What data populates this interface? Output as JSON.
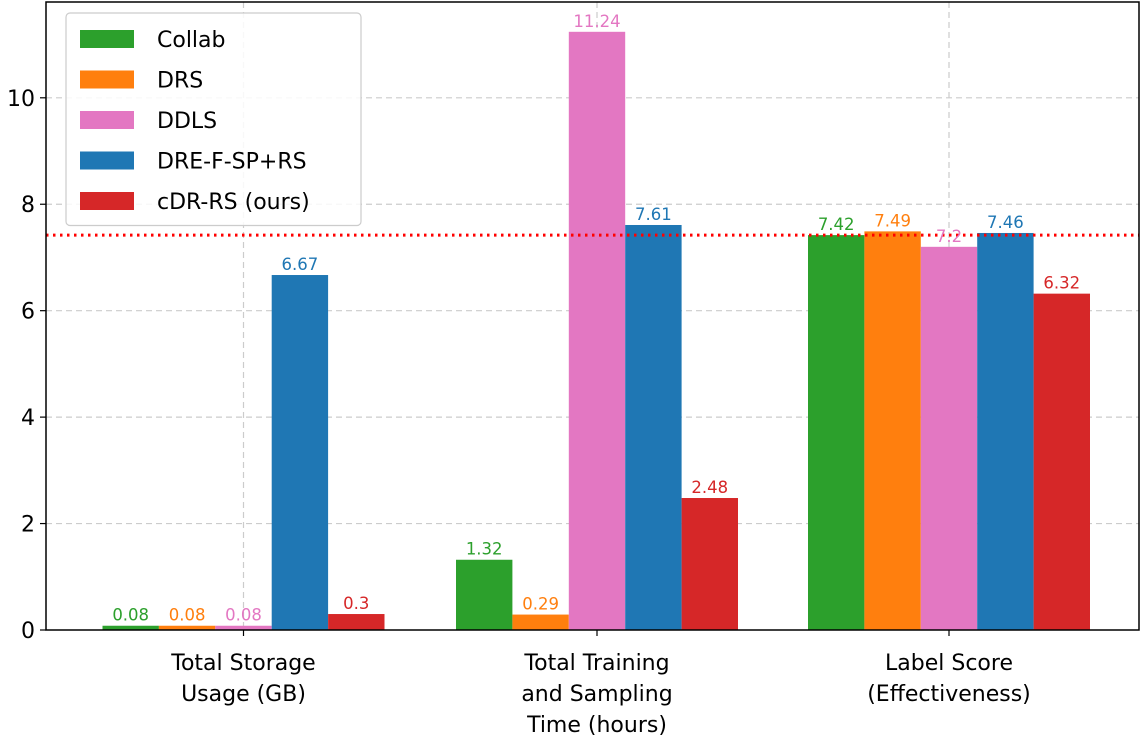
{
  "chart_data": {
    "type": "bar",
    "title": "",
    "xlabel": "",
    "ylabel": "",
    "ylim": [
      0,
      11.8
    ],
    "yticks": [
      0,
      2,
      4,
      6,
      8,
      10
    ],
    "grid": true,
    "legend_position": "top-left",
    "categories": [
      [
        "Total Storage",
        "Usage (GB)"
      ],
      [
        "Total Training",
        "and Sampling",
        "Time (hours)"
      ],
      [
        "Label Score",
        "(Effectiveness)"
      ]
    ],
    "series": [
      {
        "name": "Collab",
        "color": "#2ca02c",
        "values": [
          0.08,
          1.32,
          7.42
        ],
        "labels": [
          "0.08",
          "1.32",
          "7.42"
        ]
      },
      {
        "name": "DRS",
        "color": "#ff7f0e",
        "values": [
          0.08,
          0.29,
          7.49
        ],
        "labels": [
          "0.08",
          "0.29",
          "7.49"
        ]
      },
      {
        "name": "DDLS",
        "color": "#e377c2",
        "values": [
          0.08,
          11.24,
          7.2
        ],
        "labels": [
          "0.08",
          "11.24",
          "7.2"
        ]
      },
      {
        "name": "DRE-F-SP+RS",
        "color": "#1f77b4",
        "values": [
          6.67,
          7.61,
          7.46
        ],
        "labels": [
          "6.67",
          "7.61",
          "7.46"
        ]
      },
      {
        "name": "cDR-RS (ours)",
        "color": "#d62728",
        "values": [
          0.3,
          2.48,
          6.32
        ],
        "labels": [
          "0.3",
          "2.48",
          "6.32"
        ]
      }
    ],
    "reference_line": {
      "value": 7.42,
      "color": "#ff0000",
      "style": "dotted"
    }
  }
}
